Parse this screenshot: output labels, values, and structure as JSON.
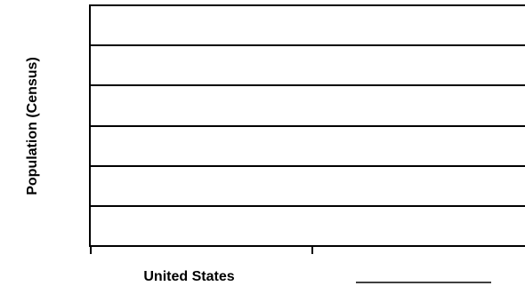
{
  "chart_data": {
    "type": "bar",
    "categories": [
      "United States",
      ""
    ],
    "series": [],
    "ylabel": "Population (Census)",
    "xlabel": "",
    "grid": true,
    "gridline_count": 6,
    "colors": {
      "gridline": "#000000",
      "frame": "#000000",
      "background": "#ffffff"
    }
  }
}
